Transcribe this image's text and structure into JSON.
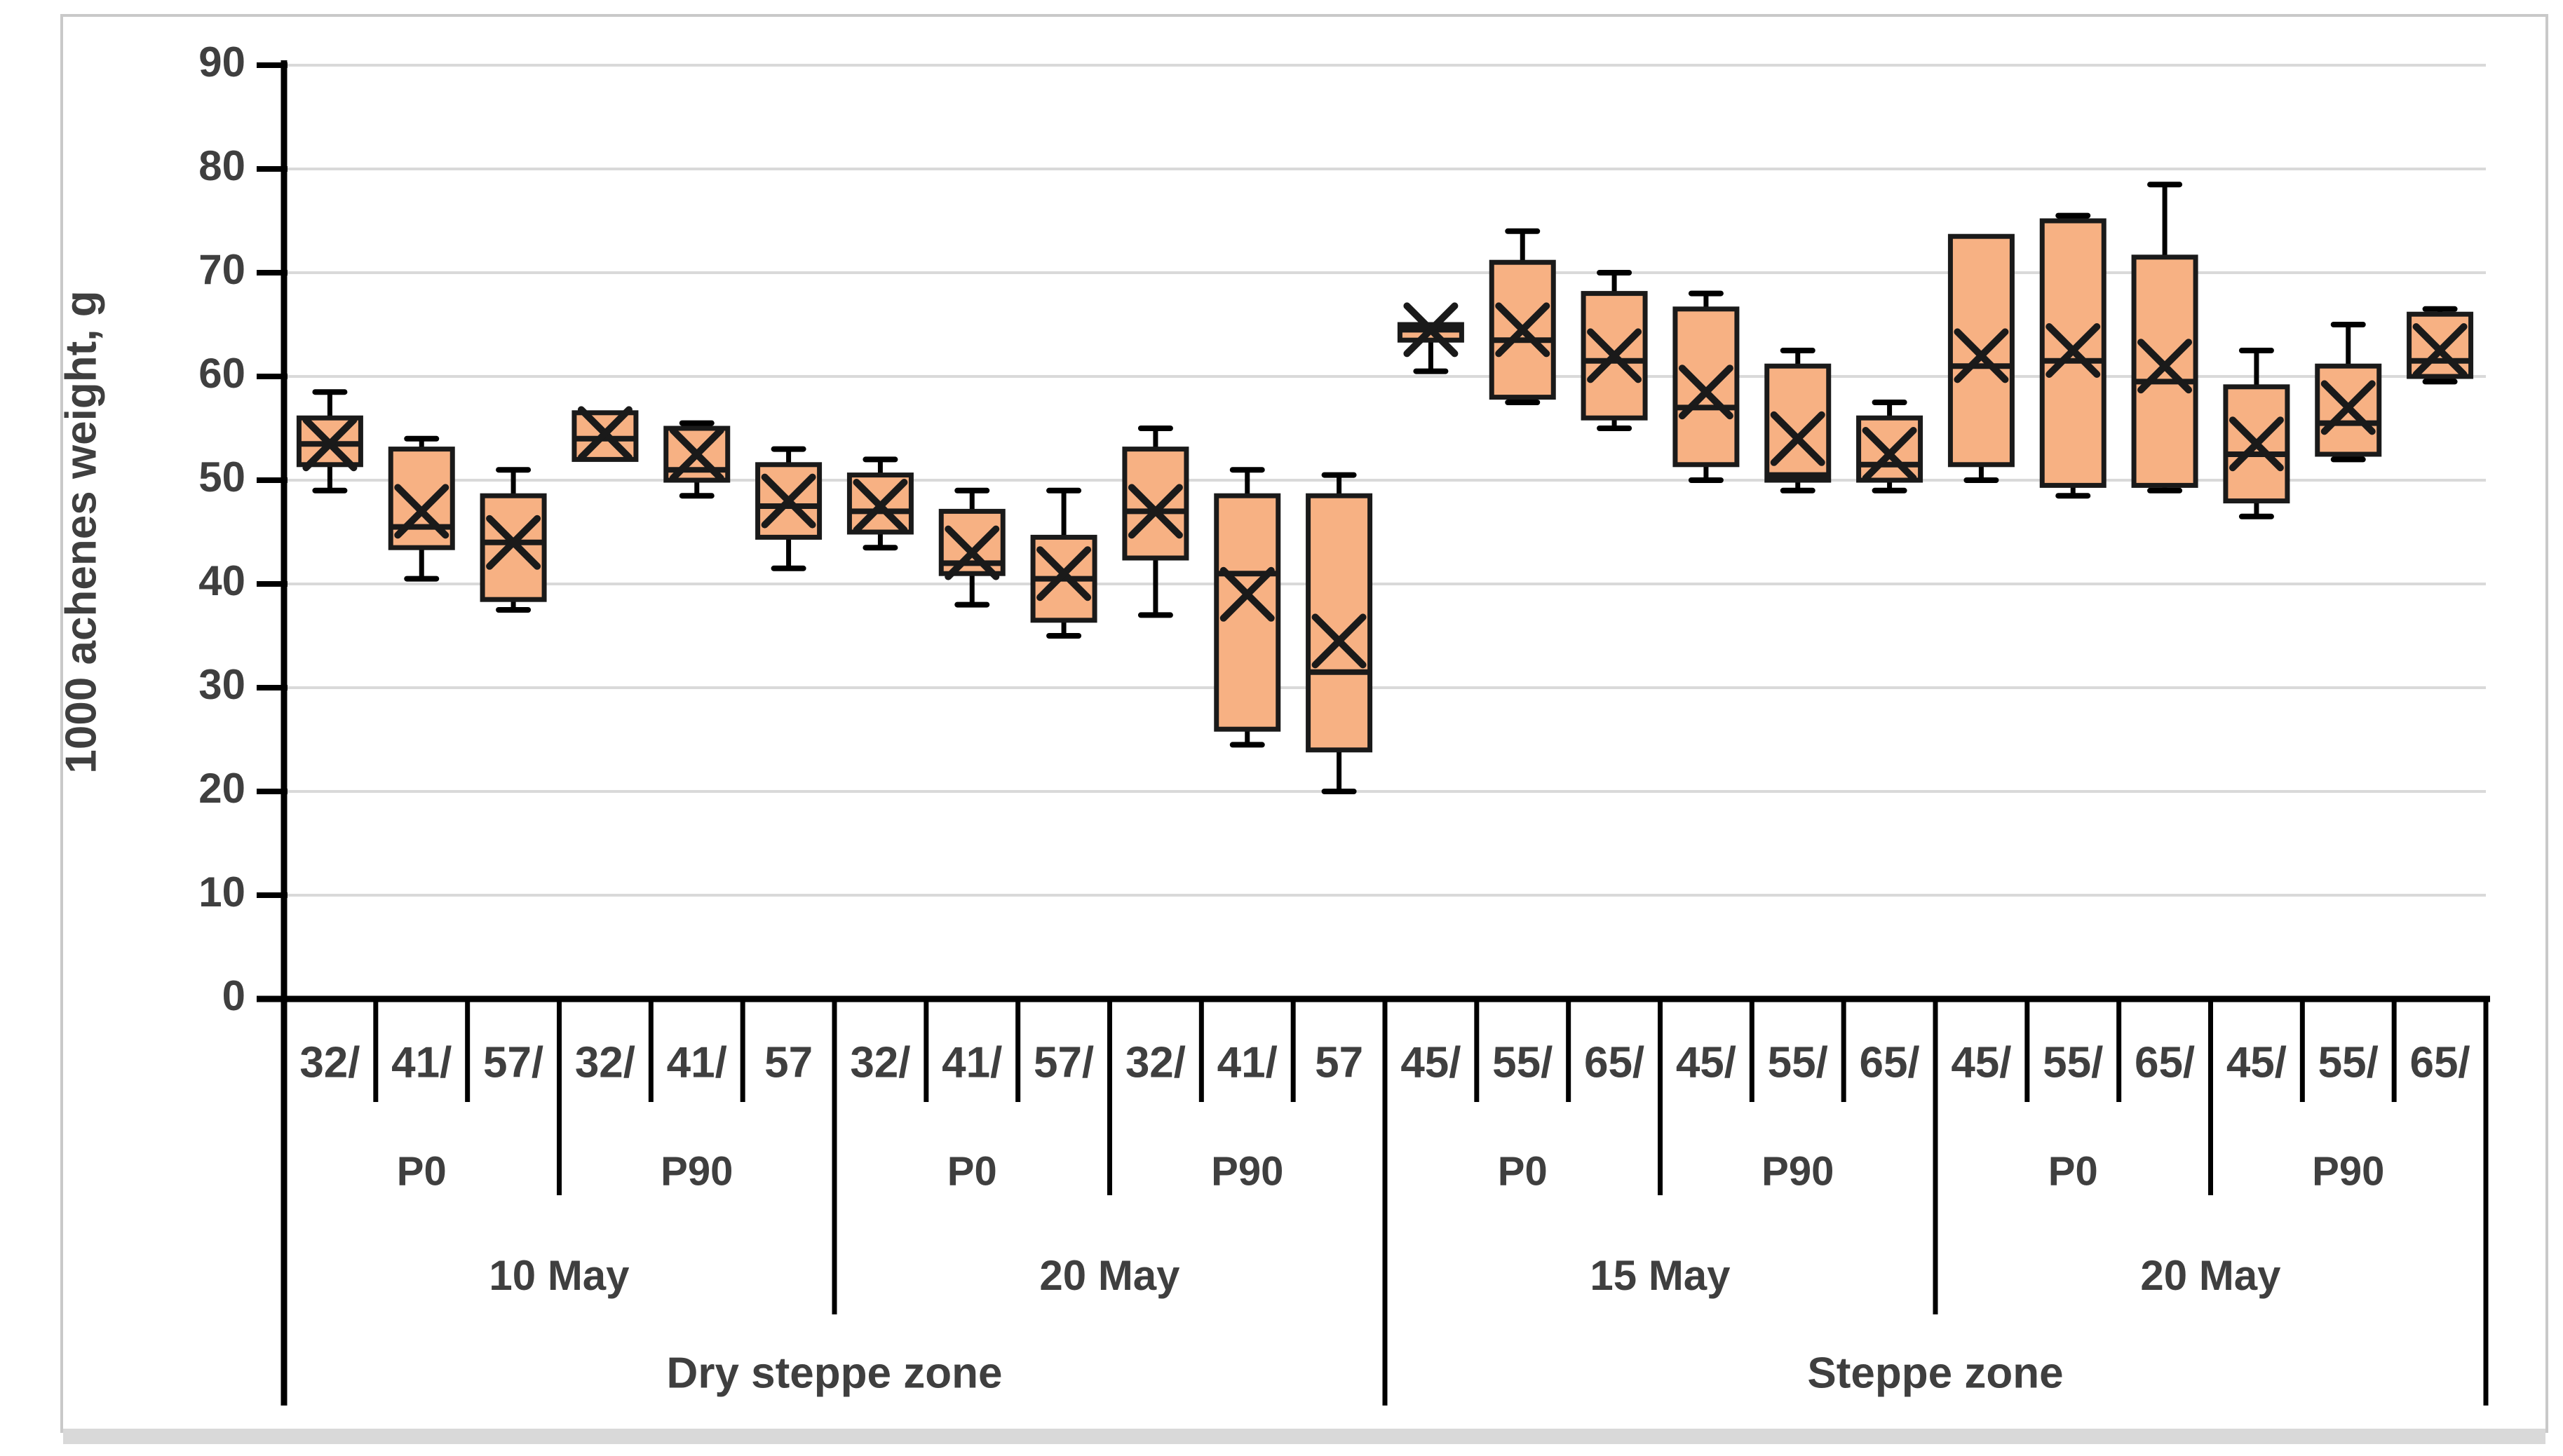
{
  "figure": {
    "background": "#FFFFFF",
    "frame_border_color": "#C9C9C9",
    "bottom_strip_color": "#D9D9D9"
  },
  "chart_data": {
    "type": "boxplot",
    "title": "",
    "ylabel": "1000 achenes weight, g",
    "xlabel": "",
    "ylim": [
      0,
      90
    ],
    "ytick_interval": 10,
    "yticks": [
      0,
      10,
      20,
      30,
      40,
      50,
      60,
      70,
      80,
      90
    ],
    "grid": true,
    "legend_position": "none",
    "series_name": "1000 achenes weight, g",
    "colors": {
      "box_fill": "#F7B183",
      "box_stroke": "#1A1A1A",
      "gridline": "#D9D9D9",
      "axis": "#000000",
      "text": "#3F3F3F"
    },
    "zones": [
      {
        "label": "Dry steppe zone",
        "dates": [
          {
            "label": "10 May",
            "treatments": [
              {
                "label": "P0",
                "boxes": [
                  {
                    "label": "32/",
                    "min": 49,
                    "q1": 51.5,
                    "median": 53.5,
                    "mean": 53.5,
                    "q3": 56,
                    "max": 58.5
                  },
                  {
                    "label": "41/",
                    "min": 40.5,
                    "q1": 43.5,
                    "median": 45.5,
                    "mean": 47,
                    "q3": 53,
                    "max": 54
                  },
                  {
                    "label": "57/",
                    "min": 37.5,
                    "q1": 38.5,
                    "median": 44,
                    "mean": 44,
                    "q3": 48.5,
                    "max": 51
                  }
                ]
              },
              {
                "label": "P90",
                "boxes": [
                  {
                    "label": "32/",
                    "min": 52,
                    "q1": 52,
                    "median": 54,
                    "mean": 54.5,
                    "q3": 56.5,
                    "max": 56.5
                  },
                  {
                    "label": "41/",
                    "min": 48.5,
                    "q1": 50,
                    "median": 51,
                    "mean": 52.5,
                    "q3": 55,
                    "max": 55.5
                  },
                  {
                    "label": "57",
                    "min": 41.5,
                    "q1": 44.5,
                    "median": 47.5,
                    "mean": 48,
                    "q3": 51.5,
                    "max": 53
                  }
                ]
              }
            ]
          },
          {
            "label": "20 May",
            "treatments": [
              {
                "label": "P0",
                "boxes": [
                  {
                    "label": "32/",
                    "min": 43.5,
                    "q1": 45,
                    "median": 47,
                    "mean": 47.5,
                    "q3": 50.5,
                    "max": 52
                  },
                  {
                    "label": "41/",
                    "min": 38,
                    "q1": 41,
                    "median": 42,
                    "mean": 43,
                    "q3": 47,
                    "max": 49
                  },
                  {
                    "label": "57/",
                    "min": 35,
                    "q1": 36.5,
                    "median": 40.5,
                    "mean": 41,
                    "q3": 44.5,
                    "max": 49
                  }
                ]
              },
              {
                "label": "P90",
                "boxes": [
                  {
                    "label": "32/",
                    "min": 37,
                    "q1": 42.5,
                    "median": 47,
                    "mean": 47,
                    "q3": 53,
                    "max": 55
                  },
                  {
                    "label": "41/",
                    "min": 24.5,
                    "q1": 26,
                    "median": 41,
                    "mean": 39,
                    "q3": 48.5,
                    "max": 51
                  },
                  {
                    "label": "57",
                    "min": 20,
                    "q1": 24,
                    "median": 31.5,
                    "mean": 34.5,
                    "q3": 48.5,
                    "max": 50.5
                  }
                ]
              }
            ]
          }
        ]
      },
      {
        "label": "Steppe zone",
        "dates": [
          {
            "label": "15 May",
            "treatments": [
              {
                "label": "P0",
                "boxes": [
                  {
                    "label": "45/",
                    "min": 60.5,
                    "q1": 63.5,
                    "median": 64.5,
                    "mean": 64.5,
                    "q3": 65,
                    "max": 65.3
                  },
                  {
                    "label": "55/",
                    "min": 57.5,
                    "q1": 58,
                    "median": 63.5,
                    "mean": 64.5,
                    "q3": 71,
                    "max": 74
                  },
                  {
                    "label": "65/",
                    "min": 55,
                    "q1": 56,
                    "median": 61.5,
                    "mean": 62,
                    "q3": 68,
                    "max": 70
                  }
                ]
              },
              {
                "label": "P90",
                "boxes": [
                  {
                    "label": "45/",
                    "min": 50,
                    "q1": 51.5,
                    "median": 57,
                    "mean": 58.5,
                    "q3": 66.5,
                    "max": 68
                  },
                  {
                    "label": "55/",
                    "min": 49,
                    "q1": 50,
                    "median": 50.5,
                    "mean": 54,
                    "q3": 61,
                    "max": 62.5
                  },
                  {
                    "label": "65/",
                    "min": 49,
                    "q1": 50,
                    "median": 51.5,
                    "mean": 52.5,
                    "q3": 56,
                    "max": 57.5
                  }
                ]
              }
            ]
          },
          {
            "label": "20 May",
            "treatments": [
              {
                "label": "P0",
                "boxes": [
                  {
                    "label": "45/",
                    "min": 50,
                    "q1": 51.5,
                    "median": 61,
                    "mean": 62,
                    "q3": 73.5,
                    "max": 73.5
                  },
                  {
                    "label": "55/",
                    "min": 48.5,
                    "q1": 49.5,
                    "median": 61.5,
                    "mean": 62.5,
                    "q3": 75,
                    "max": 75.5
                  },
                  {
                    "label": "65/",
                    "min": 49,
                    "q1": 49.5,
                    "median": 59.5,
                    "mean": 61,
                    "q3": 71.5,
                    "max": 78.5
                  }
                ]
              },
              {
                "label": "P90",
                "boxes": [
                  {
                    "label": "45/",
                    "min": 46.5,
                    "q1": 48,
                    "median": 52.5,
                    "mean": 53.5,
                    "q3": 59,
                    "max": 62.5
                  },
                  {
                    "label": "55/",
                    "min": 52,
                    "q1": 52.5,
                    "median": 55.5,
                    "mean": 57,
                    "q3": 61,
                    "max": 65
                  },
                  {
                    "label": "65/",
                    "min": 59.5,
                    "q1": 60,
                    "median": 61.5,
                    "mean": 62.5,
                    "q3": 66,
                    "max": 66.5
                  }
                ]
              }
            ]
          }
        ]
      }
    ]
  }
}
